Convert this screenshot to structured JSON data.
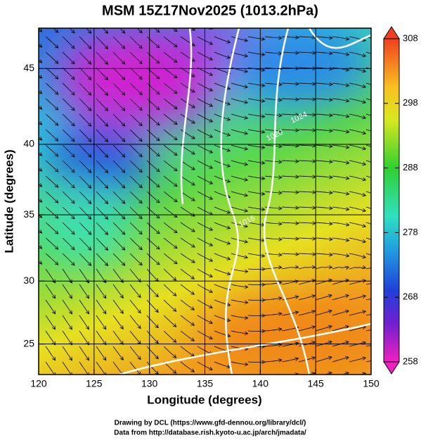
{
  "chart_data": {
    "type": "map",
    "title": "MSM 15Z17Nov2025 (1013.2hPa)",
    "x_label": "Longitude (degrees)",
    "y_label": "Latitude  (degrees)",
    "projection": "mercator",
    "xlim": [
      120,
      150
    ],
    "xticks": [
      120,
      125,
      130,
      135,
      140,
      145,
      150
    ],
    "ylim": [
      22.5,
      47.5
    ],
    "yticks": [
      25,
      30,
      35,
      40,
      45
    ],
    "grid": true,
    "colorbar": {
      "lim": [
        258,
        308
      ],
      "ticks": [
        258,
        268,
        278,
        288,
        298,
        308
      ]
    },
    "contours": [
      {
        "label": "1024",
        "x": 143.5,
        "y": 41.8
      },
      {
        "label": "1020",
        "x": 141.3,
        "y": 40.6
      },
      {
        "label": "1016",
        "x": 138.8,
        "y": 34.5
      }
    ],
    "footer": [
      "Drawing by DCL (https://www.gfd-dennou.org/library/dcl/)",
      "Data from http://database.rish.kyoto-u.ac.jp/arch/jmadata/"
    ]
  }
}
